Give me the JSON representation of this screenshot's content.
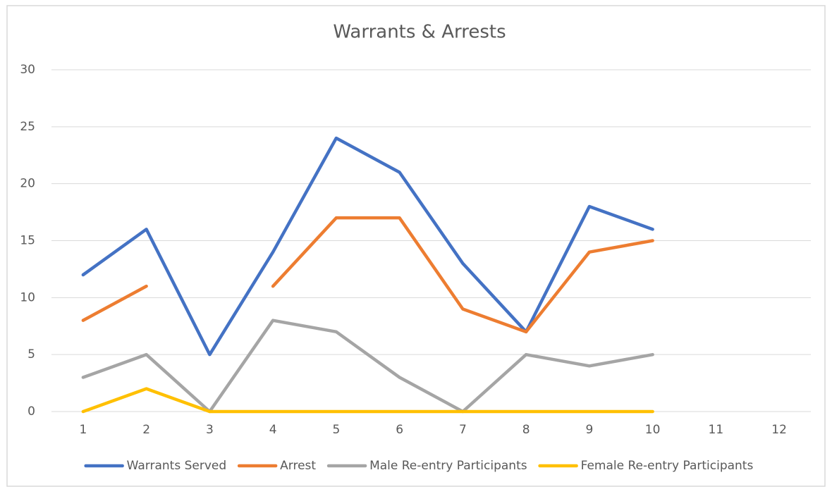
{
  "chart_data": {
    "type": "line",
    "title": "Warrants & Arrests",
    "categories": [
      "1",
      "2",
      "3",
      "4",
      "5",
      "6",
      "7",
      "8",
      "9",
      "10",
      "11",
      "12"
    ],
    "series": [
      {
        "name": "Warrants Served",
        "color": "#4472c4",
        "values": [
          12,
          16,
          5,
          14,
          24,
          21,
          13,
          7,
          18,
          16,
          null,
          null
        ]
      },
      {
        "name": "Arrest",
        "color": "#ed7d31",
        "values": [
          8,
          11,
          null,
          11,
          17,
          17,
          9,
          7,
          14,
          15,
          null,
          null
        ]
      },
      {
        "name": "Male Re-entry Participants",
        "color": "#a5a5a5",
        "values": [
          3,
          5,
          0,
          8,
          7,
          3,
          0,
          5,
          4,
          5,
          null,
          null
        ]
      },
      {
        "name": "Female Re-entry Participants",
        "color": "#ffc000",
        "values": [
          0,
          2,
          0,
          0,
          0,
          0,
          0,
          0,
          0,
          0,
          null,
          null
        ]
      }
    ],
    "ylim": [
      0,
      30
    ],
    "yticks": [
      0,
      5,
      10,
      15,
      20,
      25,
      30
    ],
    "grid": true,
    "legend": "bottom"
  }
}
